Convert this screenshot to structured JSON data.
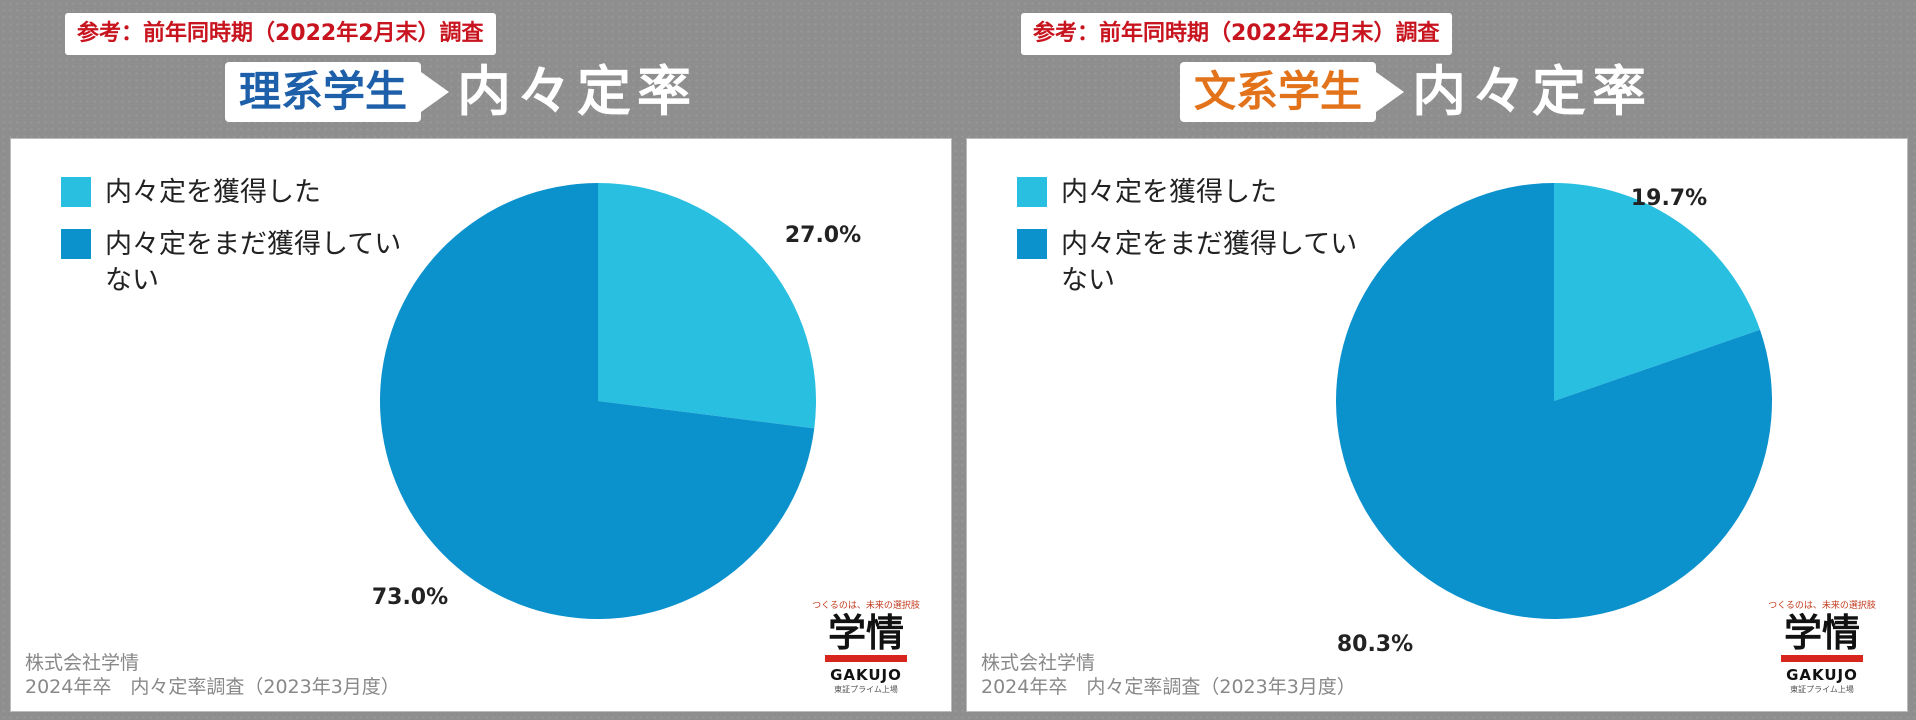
{
  "panels": [
    {
      "ref_label": "参考：前年同時期（2022年2月末）調査",
      "category": "理系学生",
      "category_color": "#1d5fa8",
      "title": "内々定率",
      "legend": [
        "内々定を獲得した",
        "内々定をまだ獲得していない"
      ],
      "source_line1": "株式会社学情",
      "source_line2": "2024年卒　内々定率調査（2023年3月度）",
      "logo": {
        "tagline": "つくるのは、未来の選択肢",
        "name": "学情",
        "en": "GAKUJO",
        "sub": "東証プライム上場"
      }
    },
    {
      "ref_label": "参考：前年同時期（2022年2月末）調査",
      "category": "文系学生",
      "category_color": "#e2731b",
      "title": "内々定率",
      "legend": [
        "内々定を獲得した",
        "内々定をまだ獲得していない"
      ],
      "source_line1": "株式会社学情",
      "source_line2": "2024年卒　内々定率調査（2023年3月度）",
      "logo": {
        "tagline": "つくるのは、未来の選択肢",
        "name": "学情",
        "en": "GAKUJO",
        "sub": "東証プライム上場"
      }
    }
  ],
  "colors": {
    "obtained": "#29bfe0",
    "not_obtained": "#0b91cc"
  },
  "chart_data": [
    {
      "type": "pie",
      "title": "理系学生 内々定率",
      "categories": [
        "内々定を獲得した",
        "内々定をまだ獲得していない"
      ],
      "values": [
        27.0,
        73.0
      ],
      "labels": [
        "27.0%",
        "73.0%"
      ],
      "legend": "top-left"
    },
    {
      "type": "pie",
      "title": "文系学生 内々定率",
      "categories": [
        "内々定を獲得した",
        "内々定をまだ獲得していない"
      ],
      "values": [
        19.7,
        80.3
      ],
      "labels": [
        "19.7%",
        "80.3%"
      ],
      "legend": "top-left"
    }
  ]
}
